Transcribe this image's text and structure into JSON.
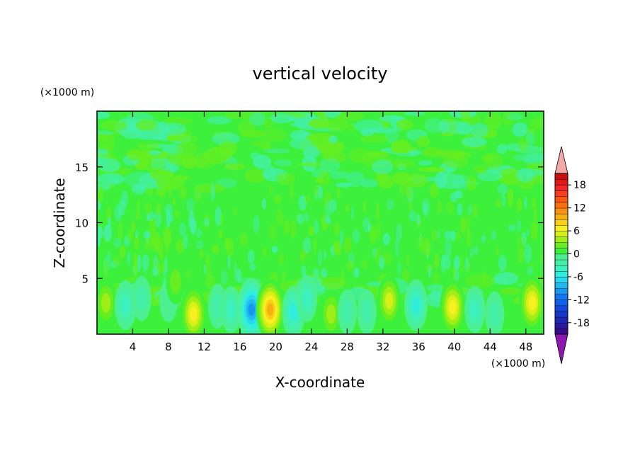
{
  "chart_data": {
    "type": "heatmap",
    "title": "vertical velocity",
    "xlabel": "X-coordinate",
    "ylabel": "Z-coordinate",
    "x_unit": "(×1000 m)",
    "y_unit": "(×1000 m)",
    "xlim": [
      0,
      50
    ],
    "ylim": [
      0,
      20
    ],
    "x_ticks": [
      4,
      8,
      12,
      16,
      20,
      24,
      28,
      32,
      36,
      40,
      44,
      48
    ],
    "y_ticks": [
      5,
      10,
      15
    ],
    "colorbar": {
      "levels": [
        -21,
        -19.5,
        -18,
        -16.5,
        -15,
        -13.5,
        -12,
        -10.5,
        -9,
        -7.5,
        -6,
        -4.5,
        -3,
        -1.5,
        0,
        1.5,
        3,
        4.5,
        6,
        7.5,
        9,
        10.5,
        12,
        13.5,
        15,
        16.5,
        18,
        19.5,
        21
      ],
      "tick_labels": [
        -18,
        -12,
        -6,
        0,
        6,
        12,
        18
      ],
      "colors": [
        "#3a0a8c",
        "#2a1aa0",
        "#1c28b4",
        "#1838c8",
        "#1448dc",
        "#1060ee",
        "#1478f4",
        "#1a96f0",
        "#20b8f0",
        "#28d8ee",
        "#30eedc",
        "#3cf0c0",
        "#44f0a8",
        "#4cf090",
        "#3cf03c",
        "#66ee20",
        "#a0ee18",
        "#d6f018",
        "#f8f020",
        "#f8d018",
        "#f8b010",
        "#f89010",
        "#f87010",
        "#f85810",
        "#f84020",
        "#f02828",
        "#e01818",
        "#c81010"
      ],
      "under_color": "#8c18b0",
      "over_color": "#f4a8a8"
    },
    "features": [
      {
        "x": 1.0,
        "z": 2.8,
        "value": 5
      },
      {
        "x": 3.2,
        "z": 2.6,
        "value": -5
      },
      {
        "x": 5.0,
        "z": 3.2,
        "value": -3
      },
      {
        "x": 8.0,
        "z": 3.0,
        "value": -2
      },
      {
        "x": 8.8,
        "z": 4.7,
        "value": 3
      },
      {
        "x": 10.8,
        "z": 1.8,
        "value": 8
      },
      {
        "x": 13.5,
        "z": 2.5,
        "value": -3
      },
      {
        "x": 15.0,
        "z": 2.2,
        "value": -4
      },
      {
        "x": 17.3,
        "z": 2.2,
        "value": -11
      },
      {
        "x": 19.4,
        "z": 2.2,
        "value": 10
      },
      {
        "x": 22.0,
        "z": 2.0,
        "value": -6
      },
      {
        "x": 23.5,
        "z": 3.2,
        "value": -4
      },
      {
        "x": 26.2,
        "z": 1.8,
        "value": 5
      },
      {
        "x": 28.0,
        "z": 2.0,
        "value": -3
      },
      {
        "x": 30.2,
        "z": 2.0,
        "value": -3
      },
      {
        "x": 32.7,
        "z": 3.0,
        "value": 6
      },
      {
        "x": 35.7,
        "z": 2.6,
        "value": -6
      },
      {
        "x": 39.8,
        "z": 2.4,
        "value": 8
      },
      {
        "x": 42.3,
        "z": 2.2,
        "value": -4
      },
      {
        "x": 44.5,
        "z": 1.8,
        "value": -3
      },
      {
        "x": 48.7,
        "z": 2.8,
        "value": 8
      }
    ]
  }
}
